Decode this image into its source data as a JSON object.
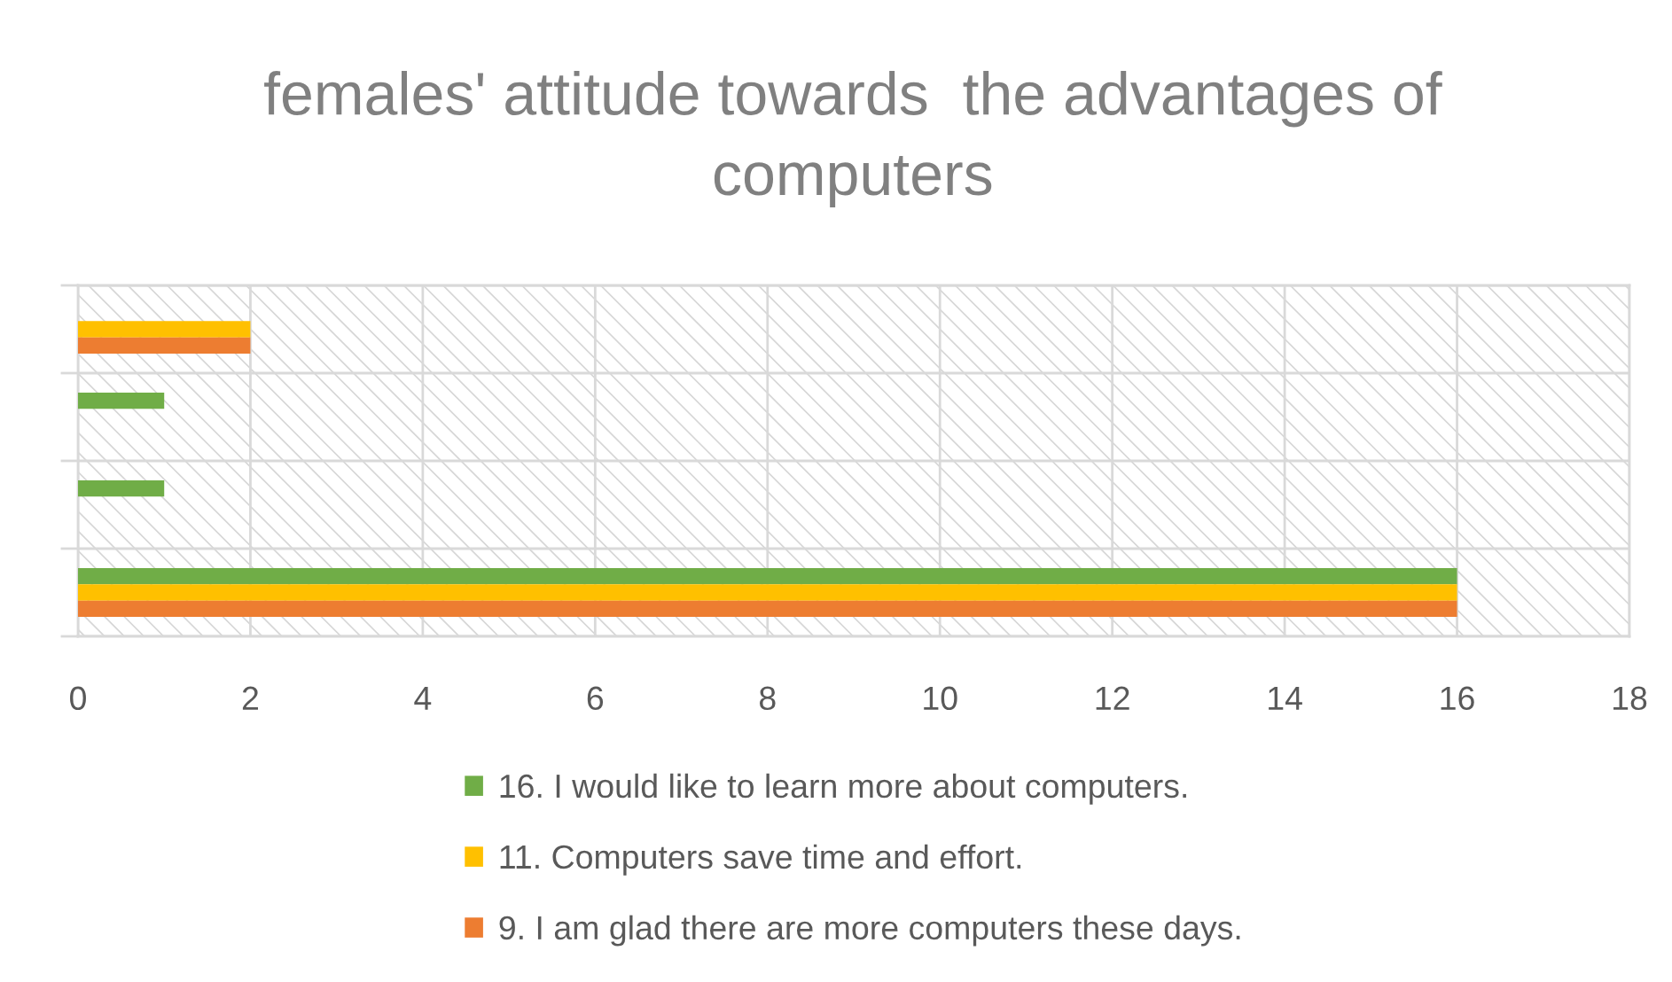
{
  "chart_data": {
    "type": "bar",
    "orientation": "horizontal",
    "title": "females' attitude towards  the advantages of computers",
    "categories": [
      null,
      null,
      null,
      null
    ],
    "series": [
      {
        "name": "16. I would like to learn more about computers.",
        "color": "#70ad47",
        "values": [
          null,
          1,
          1,
          16
        ]
      },
      {
        "name": "11. Computers save time and effort.",
        "color": "#ffc000",
        "values": [
          2,
          null,
          null,
          16
        ]
      },
      {
        "name": "9. I am glad there are more computers these days.",
        "color": "#ed7d31",
        "values": [
          2,
          null,
          null,
          16
        ]
      }
    ],
    "xlim": [
      0,
      18
    ],
    "xticks": [
      0,
      2,
      4,
      6,
      8,
      10,
      12,
      14,
      16,
      18
    ],
    "grid": true,
    "legend": "bottom"
  }
}
